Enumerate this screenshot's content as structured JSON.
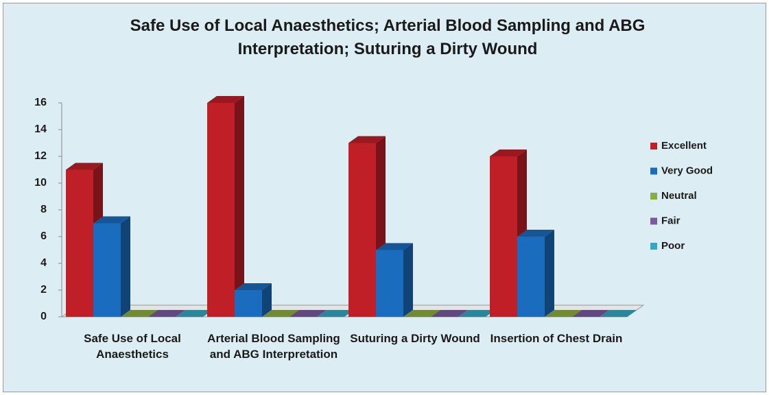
{
  "chart_data": {
    "type": "bar3d",
    "title": "Safe Use of Local Anaesthetics; Arterial Blood Sampling and ABG Interpretation;  Suturing a Dirty Wound",
    "categories": [
      "Safe Use of Local Anaesthetics",
      "Arterial Blood Sampling and ABG Interpretation",
      "Suturing a Dirty Wound",
      "Insertion of Chest Drain"
    ],
    "series": [
      {
        "name": "Excellent",
        "color": "#c01f28",
        "values": [
          11,
          16,
          13,
          12
        ]
      },
      {
        "name": "Very Good",
        "color": "#1a6cbf",
        "values": [
          7,
          2,
          5,
          6
        ]
      },
      {
        "name": "Neutral",
        "color": "#8cae3e",
        "values": [
          0,
          0,
          0,
          0
        ]
      },
      {
        "name": "Fair",
        "color": "#7b5aa0",
        "values": [
          0,
          0,
          0,
          0
        ]
      },
      {
        "name": "Poor",
        "color": "#35a7c2",
        "values": [
          0,
          0,
          0,
          0
        ]
      }
    ],
    "ylim": [
      0,
      16
    ],
    "yticks": [
      0,
      2,
      4,
      6,
      8,
      10,
      12,
      14,
      16
    ],
    "legend": "right"
  }
}
